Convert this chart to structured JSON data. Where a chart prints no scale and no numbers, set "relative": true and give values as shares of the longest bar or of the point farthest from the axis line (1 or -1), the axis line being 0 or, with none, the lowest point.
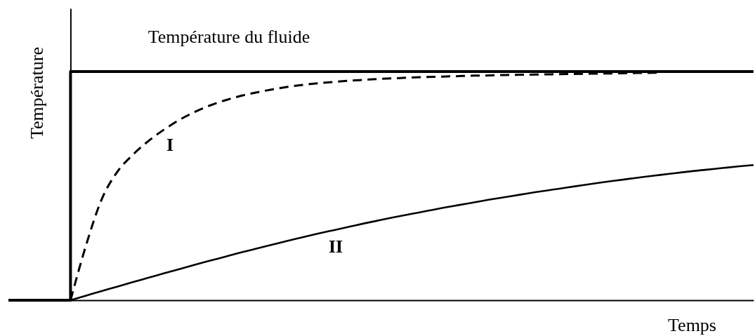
{
  "chart_data": {
    "type": "line",
    "relative": true,
    "ylabel": "Température",
    "xlabel": "Temps",
    "categories": [
      null,
      null,
      null,
      null,
      null,
      null,
      null,
      null,
      null,
      null,
      null,
      null,
      null,
      null,
      null,
      null,
      null,
      null,
      null,
      null,
      null,
      null,
      null,
      null,
      null,
      null,
      null,
      null,
      null,
      null,
      null,
      null,
      null,
      null,
      null,
      null,
      null,
      null,
      null,
      null,
      null,
      null,
      null,
      null,
      null,
      null,
      null,
      null,
      null
    ],
    "series": [
      {
        "name": "Température du fluide",
        "type": "step",
        "color": "#000000",
        "values": [
          0,
          0,
          0,
          0,
          1,
          1,
          1,
          1,
          1,
          1,
          1,
          1,
          1,
          1,
          1,
          1,
          1,
          1,
          1,
          1,
          1,
          1,
          1,
          1,
          1,
          1,
          1,
          1,
          1,
          1,
          1,
          1,
          1,
          1,
          1,
          1,
          1,
          1,
          1,
          1,
          1,
          1,
          1,
          1,
          1,
          1,
          1,
          1,
          1
        ]
      },
      {
        "name": "I",
        "color": "#000000",
        "line_style": "dashed",
        "values": [
          null,
          null,
          null,
          null,
          0,
          0.24,
          0.44,
          0.56,
          0.635,
          0.695,
          0.745,
          0.788,
          0.823,
          0.852,
          0.875,
          0.894,
          0.909,
          0.922,
          0.933,
          0.942,
          0.949,
          0.955,
          0.96,
          0.964,
          0.968,
          0.971,
          0.974,
          0.976,
          0.978,
          0.98,
          0.982,
          0.983,
          0.985,
          0.986,
          0.987,
          0.988,
          0.989,
          0.99,
          0.991,
          0.992,
          0.993,
          0.994,
          0.995,
          null,
          null,
          null,
          null,
          null,
          null
        ]
      },
      {
        "name": "II",
        "color": "#000000",
        "values": [
          null,
          null,
          null,
          null,
          0,
          0.02,
          0.04,
          0.059,
          0.079,
          0.098,
          0.117,
          0.136,
          0.155,
          0.173,
          0.191,
          0.209,
          0.226,
          0.243,
          0.26,
          0.276,
          0.292,
          0.307,
          0.322,
          0.337,
          0.351,
          0.365,
          0.378,
          0.391,
          0.404,
          0.416,
          0.428,
          0.44,
          0.451,
          0.462,
          0.473,
          0.483,
          0.493,
          0.503,
          0.513,
          0.522,
          0.531,
          0.54,
          0.548,
          0.556,
          0.564,
          0.571,
          0.578,
          0.585,
          0.591
        ]
      }
    ]
  }
}
